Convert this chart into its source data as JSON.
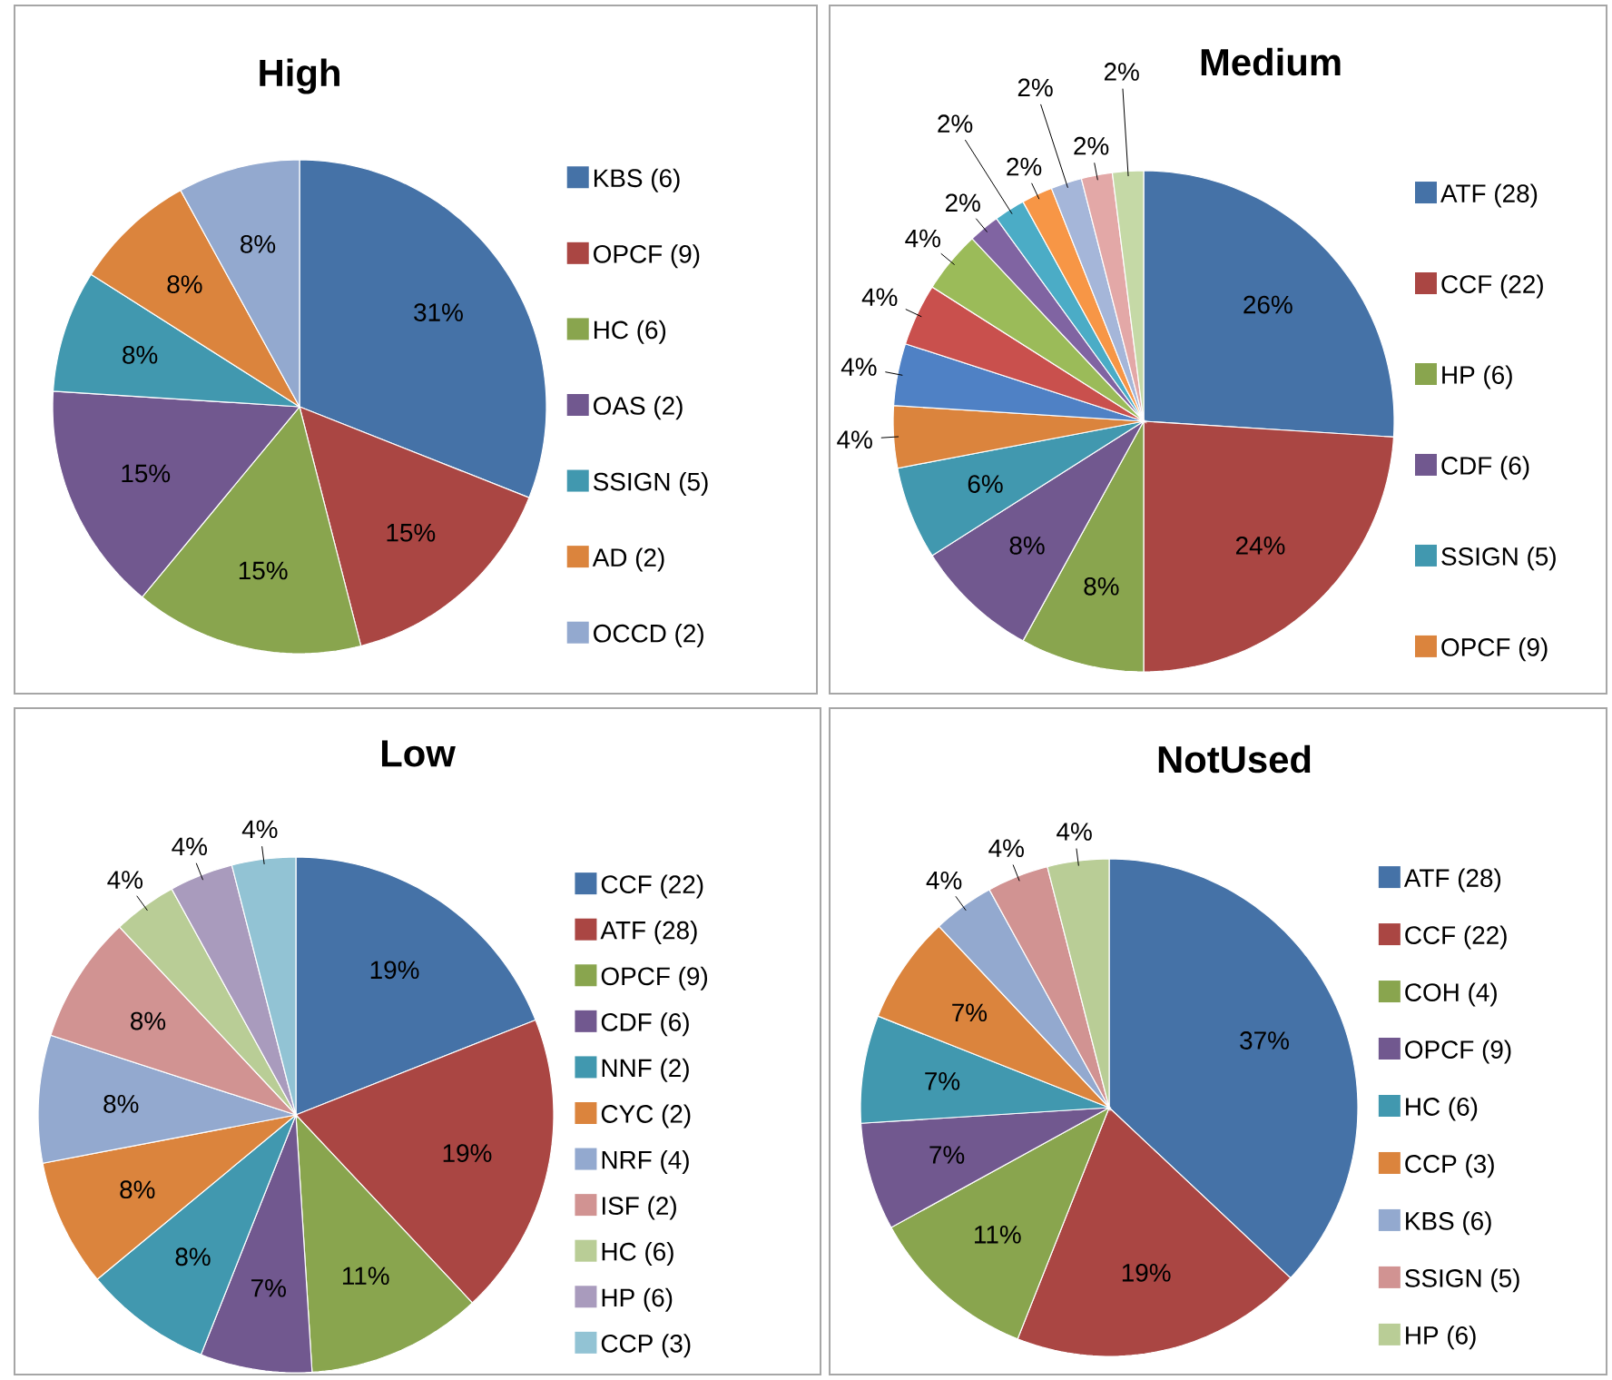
{
  "chart_data": [
    {
      "type": "pie",
      "title": "High",
      "legend": "right",
      "categories": [
        "KBS (6)",
        "OPCF (9)",
        "HC (6)",
        "OAS (2)",
        "SSIGN (5)",
        "AD (2)",
        "OCCD (2)"
      ],
      "values": [
        31,
        15,
        15,
        15,
        8,
        8,
        8
      ],
      "value_labels": [
        "31%",
        "15%",
        "15%",
        "15%",
        "8%",
        "8%",
        "8%"
      ],
      "colors": [
        "#4572a7",
        "#aa4643",
        "#89a54e",
        "#71588f",
        "#4198af",
        "#db843d",
        "#93a9cf"
      ]
    },
    {
      "type": "pie",
      "title": "Medium",
      "legend": "right",
      "categories": [
        "ATF (28)",
        "CCF (22)",
        "HP (6)",
        "CDF (6)",
        "SSIGN (5)",
        "OPCF (9)",
        null,
        null,
        null,
        null,
        null,
        null,
        null,
        null,
        null
      ],
      "values": [
        26,
        24,
        8,
        8,
        6,
        4,
        4,
        4,
        4,
        2,
        2,
        2,
        2,
        2,
        2
      ],
      "value_labels": [
        "26%",
        "24%",
        "8%",
        "8%",
        "6%",
        "4%",
        "4%",
        "4%",
        "4%",
        "2%",
        "2%",
        "2%",
        "2%",
        "2%",
        "2%"
      ],
      "colors": [
        "#4572a7",
        "#aa4643",
        "#89a54e",
        "#71588f",
        "#4198af",
        "#db843d",
        "#4f81c5",
        "#c9504d",
        "#9bbb59",
        "#8064a2",
        "#4bacc6",
        "#f79646",
        "#a5b6d9",
        "#e3a8a7",
        "#c5d9a6"
      ]
    },
    {
      "type": "pie",
      "title": "Low",
      "legend": "right",
      "categories": [
        "CCF (22)",
        "ATF (28)",
        "OPCF (9)",
        "CDF (6)",
        "NNF (2)",
        "CYC (2)",
        "NRF (4)",
        "ISF (2)",
        "HC (6)",
        "HP (6)",
        "CCP (3)"
      ],
      "values": [
        19,
        19,
        11,
        7,
        8,
        8,
        8,
        8,
        4,
        4,
        4
      ],
      "value_labels": [
        "19%",
        "19%",
        "11%",
        "7%",
        "8%",
        "8%",
        "8%",
        "8%",
        "4%",
        "4%",
        "4%"
      ],
      "colors": [
        "#4572a7",
        "#aa4643",
        "#89a54e",
        "#71588f",
        "#4198af",
        "#db843d",
        "#93a9cf",
        "#d19392",
        "#b9cd96",
        "#a99bbd",
        "#92c3d4"
      ]
    },
    {
      "type": "pie",
      "title": "NotUsed",
      "legend": "right",
      "categories": [
        "ATF (28)",
        "CCF (22)",
        "COH (4)",
        "OPCF (9)",
        "HC (6)",
        "CCP (3)",
        "KBS (6)",
        "SSIGN (5)",
        "HP (6)"
      ],
      "values": [
        37,
        19,
        11,
        7,
        7,
        7,
        4,
        4,
        4
      ],
      "value_labels": [
        "37%",
        "19%",
        "11%",
        "7%",
        "7%",
        "7%",
        "4%",
        "4%",
        "4%"
      ],
      "colors": [
        "#4572a7",
        "#aa4643",
        "#89a54e",
        "#71588f",
        "#4198af",
        "#db843d",
        "#93a9cf",
        "#d19392",
        "#b9cd96"
      ]
    }
  ]
}
